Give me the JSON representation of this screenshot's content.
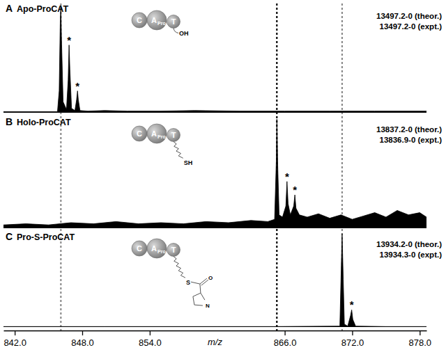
{
  "chart_data": {
    "type": "line",
    "xlabel": "m/z",
    "xlim": [
      841,
      878.6
    ],
    "xticks": [
      {
        "value": 842,
        "label": "842.0"
      },
      {
        "value": 848,
        "label": "848.0"
      },
      {
        "value": 854,
        "label": "854.0"
      },
      {
        "value": 866,
        "label": "866.0"
      },
      {
        "value": 872,
        "label": "872.0"
      },
      {
        "value": 878,
        "label": "878.0"
      }
    ],
    "ylim": [
      0,
      100
    ],
    "tick_labels": "x",
    "color": "#000000",
    "star_label": "*",
    "reference_lines": [
      {
        "x": 846.1,
        "color": "#8c8c8c",
        "line_style": "dotted"
      },
      {
        "x": 865.3,
        "color": "#000000",
        "line_style": "dotted"
      },
      {
        "x": 871.1,
        "color": "#8c8c8c",
        "line_style": "dotted"
      }
    ],
    "panels": [
      {
        "letter": "A",
        "title": "Apo-ProCAT",
        "mass_labels": [
          "13497.2-0 (theor.)",
          "13497.2-0 (expt.)"
        ],
        "icon": {
          "domains": [
            "C",
            "A",
            "T"
          ],
          "subscript": "Pro",
          "end_group": "OH"
        },
        "x": [
          841,
          845.8,
          845.95,
          846.05,
          846.1,
          846.15,
          846.3,
          846.6,
          846.75,
          846.83,
          846.9,
          847.05,
          847.35,
          847.5,
          847.58,
          847.65,
          847.8,
          848.5,
          850,
          852,
          855,
          858,
          862,
          866,
          870,
          874,
          878.6
        ],
        "y": [
          1,
          1,
          20,
          85,
          98,
          70,
          10,
          3,
          30,
          62,
          40,
          4,
          2,
          12,
          20,
          12,
          2,
          1.5,
          2,
          1.5,
          1.5,
          2,
          1.5,
          1.5,
          1.5,
          1.5,
          1.5
        ],
        "stars": {
          "x": [
            846.83,
            847.58
          ],
          "y": [
            62,
            20
          ]
        }
      },
      {
        "letter": "B",
        "title": "Holo-ProCAT",
        "mass_labels": [
          "13837.2-0 (theor.)",
          "13836.9-0 (expt.)"
        ],
        "icon": {
          "domains": [
            "C",
            "A",
            "T"
          ],
          "subscript": "Pro",
          "end_group": "SH"
        },
        "x": [
          841,
          843,
          845,
          847,
          849,
          851,
          853,
          855,
          857,
          859,
          861,
          863,
          864.5,
          865.1,
          865.25,
          865.3,
          865.38,
          865.5,
          865.8,
          866.1,
          866.2,
          866.3,
          866.5,
          866.8,
          866.9,
          867.0,
          867.3,
          868,
          869,
          870,
          871,
          872,
          873,
          874,
          875,
          876,
          877,
          878,
          878.6
        ],
        "y": [
          3,
          4,
          3,
          5,
          4,
          6,
          4,
          5,
          4,
          6,
          5,
          7,
          6,
          8,
          60,
          98,
          55,
          12,
          10,
          20,
          42,
          22,
          12,
          20,
          30,
          18,
          12,
          10,
          13,
          9,
          12,
          8,
          11,
          14,
          10,
          16,
          12,
          14,
          10
        ],
        "stars": {
          "x": [
            866.2,
            866.9
          ],
          "y": [
            42,
            30
          ]
        }
      },
      {
        "letter": "C",
        "title": "Pro-S-ProCAT",
        "mass_labels": [
          "13934.2-0 (theor.)",
          "13934.3-0 (expt.)"
        ],
        "icon": {
          "domains": [
            "C",
            "A",
            "T"
          ],
          "subscript": "Pro",
          "end_group": "S",
          "acyl_atoms": [
            "O",
            "N"
          ]
        },
        "x": [
          841,
          850,
          860,
          865,
          870.9,
          871.0,
          871.1,
          871.2,
          871.3,
          871.6,
          871.85,
          871.95,
          872.05,
          872.3,
          875,
          878.6
        ],
        "y": [
          0.5,
          0.5,
          0.5,
          0.5,
          1,
          50,
          98,
          50,
          3,
          1,
          12,
          18,
          8,
          1,
          0.5,
          0.5
        ],
        "stars": {
          "x": [
            871.95
          ],
          "y": [
            18
          ]
        }
      }
    ]
  }
}
